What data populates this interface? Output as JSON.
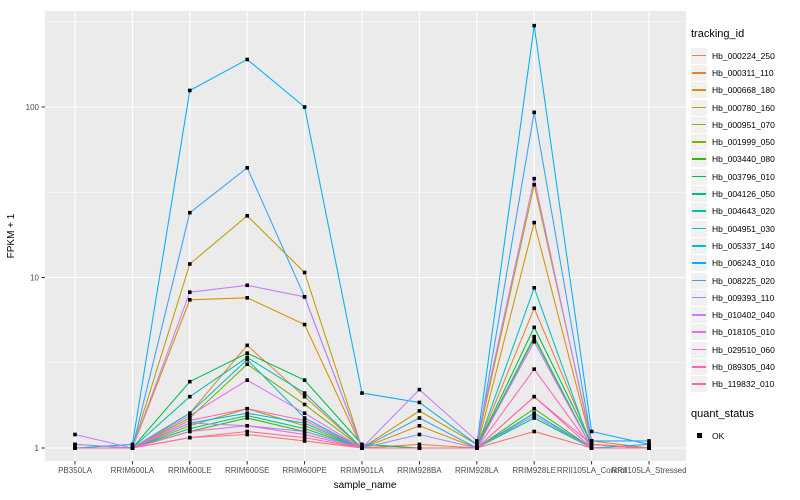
{
  "figure": {
    "y_axis": {
      "label": "FPKM + 1",
      "ticks": [
        "1",
        "10",
        "100"
      ]
    },
    "x_axis": {
      "label": "sample_name"
    },
    "legend": {
      "tracking_title": "tracking_id",
      "quant_title": "quant_status",
      "quant_label": "OK"
    },
    "colors": {
      "panel_background": "#EBEBEB",
      "gridline": "#FFFFFF",
      "tick_label": "#4D4D4D",
      "tick_mark": "#333333",
      "axis_title": "#000000",
      "point_marker": "#000000",
      "legend_key_background": "#F1F1F1"
    }
  },
  "chart_data": {
    "type": "line",
    "title": "",
    "xlabel": "sample_name",
    "ylabel": "FPKM + 1",
    "y_scale": "log10",
    "ylim": [
      1,
      400
    ],
    "y_ticks": [
      1,
      10,
      100
    ],
    "y_minor_ticks": [
      3.162,
      31.62,
      316.2
    ],
    "grid": true,
    "legend_position": "right",
    "point_marker": {
      "shape": "square",
      "color": "#000000",
      "status": "OK"
    },
    "categories": [
      "PB350LA",
      "RRIM600LA",
      "RRIM600LE",
      "RRIM600SE",
      "RRIM600PE",
      "RRIM901LA",
      "RRIM928BA",
      "RRIM928LA",
      "RRIM928LE",
      "RRII105LA_Control",
      "RRII105LA_Stressed"
    ],
    "series": [
      {
        "name": "Hb_000224_250",
        "color": "#F8766D",
        "values": [
          1.0,
          1.0,
          1.15,
          1.2,
          1.1,
          1.0,
          1.0,
          1.0,
          1.25,
          1.0,
          1.0
        ]
      },
      {
        "name": "Hb_000311_110",
        "color": "#EA8331",
        "values": [
          1.0,
          1.0,
          1.6,
          4.0,
          2.0,
          1.0,
          1.05,
          1.0,
          6.6,
          1.05,
          1.0
        ]
      },
      {
        "name": "Hb_000668_180",
        "color": "#D89000",
        "values": [
          1.0,
          1.0,
          7.4,
          7.6,
          5.3,
          1.0,
          1.35,
          1.0,
          21.0,
          1.05,
          1.0
        ]
      },
      {
        "name": "Hb_000780_160",
        "color": "#C09B00",
        "values": [
          1.05,
          1.0,
          12.0,
          23.0,
          10.7,
          1.0,
          1.65,
          1.05,
          35.0,
          1.1,
          1.0
        ]
      },
      {
        "name": "Hb_000951_070",
        "color": "#A3A500",
        "values": [
          1.0,
          1.0,
          1.35,
          1.7,
          1.35,
          1.0,
          1.0,
          1.0,
          1.6,
          1.0,
          1.0
        ]
      },
      {
        "name": "Hb_001999_050",
        "color": "#7CAE00",
        "values": [
          1.0,
          1.0,
          1.5,
          3.1,
          1.8,
          1.0,
          1.0,
          1.0,
          4.5,
          1.0,
          1.0
        ]
      },
      {
        "name": "Hb_003440_080",
        "color": "#39B600",
        "values": [
          1.0,
          1.0,
          1.25,
          1.5,
          1.25,
          1.0,
          1.0,
          1.0,
          1.7,
          1.0,
          1.0
        ]
      },
      {
        "name": "Hb_003796_010",
        "color": "#00BB4E",
        "values": [
          1.0,
          1.0,
          2.45,
          3.6,
          2.5,
          1.05,
          1.0,
          1.0,
          5.1,
          1.05,
          1.0
        ]
      },
      {
        "name": "Hb_004126_050",
        "color": "#00BF7D",
        "values": [
          1.0,
          1.0,
          1.3,
          1.55,
          1.3,
          1.0,
          1.0,
          1.0,
          1.5,
          1.0,
          1.0
        ]
      },
      {
        "name": "Hb_004643_020",
        "color": "#00C1A3",
        "values": [
          1.0,
          1.0,
          2.0,
          3.4,
          2.1,
          1.0,
          1.0,
          1.0,
          4.4,
          1.0,
          1.0
        ]
      },
      {
        "name": "Hb_004951_030",
        "color": "#00BFC4",
        "values": [
          1.0,
          1.0,
          1.6,
          3.3,
          1.5,
          1.0,
          1.0,
          1.0,
          8.7,
          1.0,
          1.05
        ]
      },
      {
        "name": "Hb_005337_140",
        "color": "#00BADE",
        "values": [
          1.0,
          1.0,
          1.4,
          1.6,
          1.4,
          1.0,
          1.0,
          1.0,
          1.6,
          1.0,
          1.0
        ]
      },
      {
        "name": "Hb_006243_010",
        "color": "#00B0F6",
        "values": [
          1.0,
          1.05,
          125,
          190,
          100,
          2.1,
          1.85,
          1.05,
          300,
          1.25,
          1.05
        ]
      },
      {
        "name": "Hb_008225_020",
        "color": "#35A2FF",
        "values": [
          1.0,
          1.0,
          24,
          44,
          7.7,
          1.0,
          1.5,
          1.0,
          93,
          1.1,
          1.1
        ]
      },
      {
        "name": "Hb_009393_110",
        "color": "#9590FF",
        "values": [
          1.05,
          1.0,
          1.4,
          1.35,
          1.25,
          1.0,
          1.2,
          1.0,
          1.55,
          1.0,
          1.0
        ]
      },
      {
        "name": "Hb_010402_040",
        "color": "#C77CFF",
        "values": [
          1.2,
          1.0,
          8.2,
          9.0,
          7.7,
          1.0,
          2.2,
          1.1,
          38,
          1.05,
          1.0
        ]
      },
      {
        "name": "Hb_018105_010",
        "color": "#E76BF3",
        "values": [
          1.0,
          1.0,
          1.55,
          2.5,
          1.6,
          1.0,
          1.0,
          1.0,
          4.2,
          1.0,
          1.0
        ]
      },
      {
        "name": "Hb_029510_060",
        "color": "#FA62DB",
        "values": [
          1.0,
          1.0,
          1.25,
          1.35,
          1.2,
          1.0,
          1.0,
          1.0,
          2.0,
          1.0,
          1.0
        ]
      },
      {
        "name": "Hb_089305_040",
        "color": "#FF62BC",
        "values": [
          1.0,
          1.0,
          1.45,
          1.7,
          1.45,
          1.0,
          1.0,
          1.0,
          2.9,
          1.0,
          1.0
        ]
      },
      {
        "name": "Hb_119832_010",
        "color": "#FF6A98",
        "values": [
          1.0,
          1.0,
          1.15,
          1.25,
          1.15,
          1.0,
          1.0,
          1.0,
          2.0,
          1.05,
          1.0
        ]
      }
    ]
  }
}
